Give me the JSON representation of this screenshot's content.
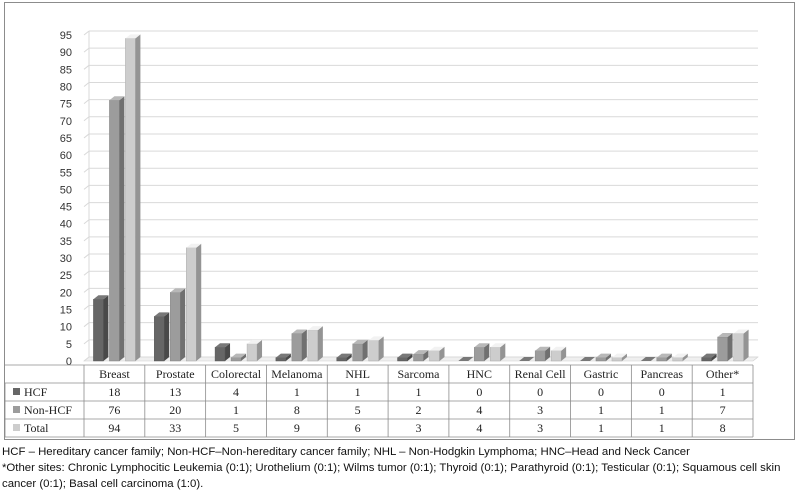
{
  "chart_data": {
    "type": "bar",
    "categories": [
      "Breast",
      "Prostate",
      "Colorectal",
      "Melanoma",
      "NHL",
      "Sarcoma",
      "HNC",
      "Renal Cell",
      "Gastric",
      "Pancreas",
      "Other*"
    ],
    "series": [
      {
        "name": "HCF",
        "values": [
          18,
          13,
          4,
          1,
          1,
          1,
          0,
          0,
          0,
          0,
          1
        ]
      },
      {
        "name": "Non-HCF",
        "values": [
          76,
          20,
          1,
          8,
          5,
          2,
          4,
          3,
          1,
          1,
          7
        ]
      },
      {
        "name": "Total",
        "values": [
          94,
          33,
          5,
          9,
          6,
          3,
          4,
          3,
          1,
          1,
          8
        ]
      }
    ],
    "yticks": [
      0,
      5,
      10,
      15,
      20,
      25,
      30,
      35,
      40,
      45,
      50,
      55,
      60,
      65,
      70,
      75,
      80,
      85,
      90,
      95
    ],
    "ylim": [
      0,
      95
    ],
    "grid": true,
    "style": "3d-clustered-column",
    "data_table": true
  },
  "colors": {
    "hcf": "#666666",
    "non_hcf": "#9c9c9c",
    "total": "#cdcdcd",
    "grid": "#d9d9d9",
    "border": "#8c8c8c"
  },
  "footnotes": {
    "line1": "HCF – Hereditary cancer family; Non-HCF–Non-hereditary cancer family; NHL – Non-Hodgkin Lymphoma; HNC–Head and Neck Cancer",
    "line2": "*Other sites: Chronic Lymphocitic Leukemia (0:1); Urothelium (0:1); Wilms tumor (0:1); Thyroid (0:1); Parathyroid (0:1); Testicular (0:1); Squamous cell skin cancer (0:1); Basal cell carcinoma (1:0)."
  }
}
